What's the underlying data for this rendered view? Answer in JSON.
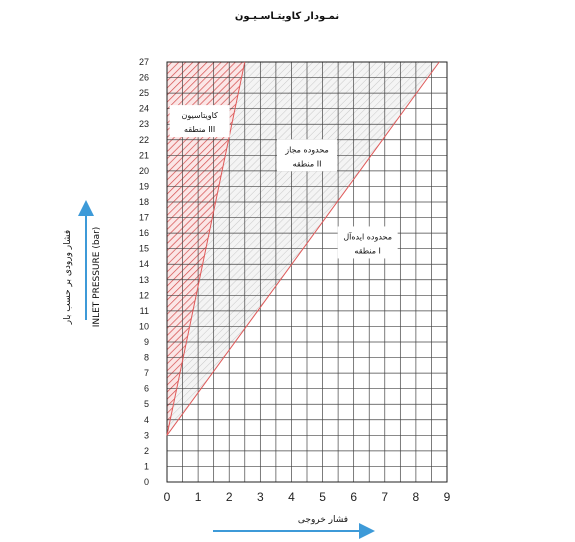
{
  "chart_data": {
    "type": "line",
    "title": "نمـودار کاویتـاسـیـون",
    "xlabel": "فشار خروجی",
    "ylabel_fa": "فشار ورودی بر حسب بار",
    "ylabel_en": "INLET PRESSURE (bar)",
    "xlim": [
      0,
      9
    ],
    "ylim": [
      0,
      27
    ],
    "x_ticks": [
      0,
      1,
      2,
      3,
      4,
      5,
      6,
      7,
      8,
      9
    ],
    "y_ticks": [
      0,
      1,
      2,
      3,
      4,
      5,
      6,
      7,
      8,
      9,
      10,
      11,
      12,
      13,
      14,
      15,
      16,
      17,
      18,
      19,
      20,
      21,
      22,
      23,
      24,
      25,
      26,
      27
    ],
    "grid": true,
    "lines": [
      {
        "name": "cavitation-boundary",
        "points": [
          [
            0,
            3
          ],
          [
            2.5,
            27
          ]
        ]
      },
      {
        "name": "acceptable-boundary",
        "points": [
          [
            0,
            3
          ],
          [
            8.75,
            27
          ]
        ]
      }
    ],
    "zones": [
      {
        "label": "کاویتاسیون",
        "sublabel": "منطقه III",
        "x": 1.05,
        "y": 23.2
      },
      {
        "label": "محدوده مجاز",
        "sublabel": "منطقه II",
        "x": 4.5,
        "y": 21.0
      },
      {
        "label": "محدوده ایده‌آل",
        "sublabel": "منطقه I",
        "x": 6.45,
        "y": 15.4
      }
    ],
    "colors": {
      "grid": "#444444",
      "line": "#e05a5a",
      "hatch": "#d44b4b",
      "zone2": "#bdbdbd",
      "arrow": "#3d9ad8"
    }
  }
}
